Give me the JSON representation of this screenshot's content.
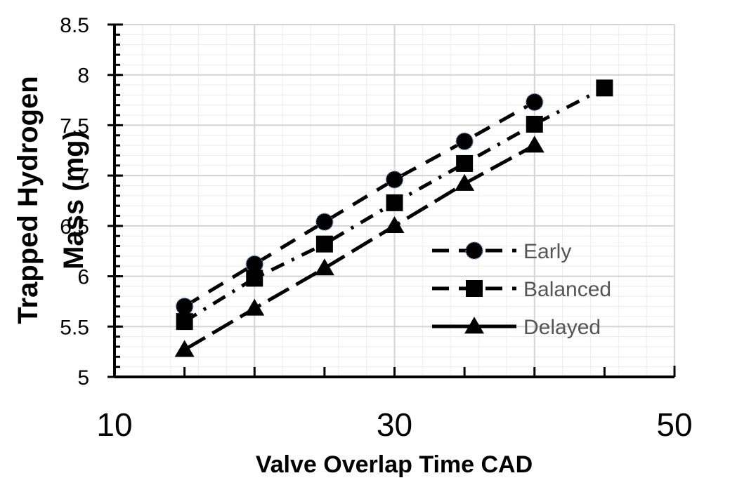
{
  "chart_data": {
    "type": "line",
    "xlabel": "Valve Overlap Time CAD",
    "ylabel_lines": [
      "Trapped Hydrogen",
      "Mass (mg)"
    ],
    "xlim": [
      10,
      50
    ],
    "ylim": [
      5,
      8.5
    ],
    "x_ticks": [
      "10",
      "30",
      "50"
    ],
    "y_ticks": [
      "5",
      "5.5",
      "6",
      "6.5",
      "7",
      "7.5",
      "8",
      "8.5"
    ],
    "grid": true,
    "legend_position": "right",
    "series": [
      {
        "name": "Early",
        "marker": "circle",
        "line_style": "dashed",
        "x": [
          15,
          20,
          25,
          30,
          35,
          40
        ],
        "y": [
          5.7,
          6.12,
          6.54,
          6.96,
          7.34,
          7.73
        ]
      },
      {
        "name": "Balanced",
        "marker": "square",
        "line_style": "dash-dot",
        "x": [
          15,
          20,
          25,
          30,
          35,
          40,
          45
        ],
        "y": [
          5.55,
          5.98,
          6.32,
          6.73,
          7.12,
          7.51,
          7.87
        ]
      },
      {
        "name": "Delayed",
        "marker": "triangle",
        "line_style": "long-dash",
        "x": [
          15,
          20,
          25,
          30,
          35,
          40
        ],
        "y": [
          5.27,
          5.68,
          6.08,
          6.5,
          6.92,
          7.3
        ]
      }
    ]
  }
}
